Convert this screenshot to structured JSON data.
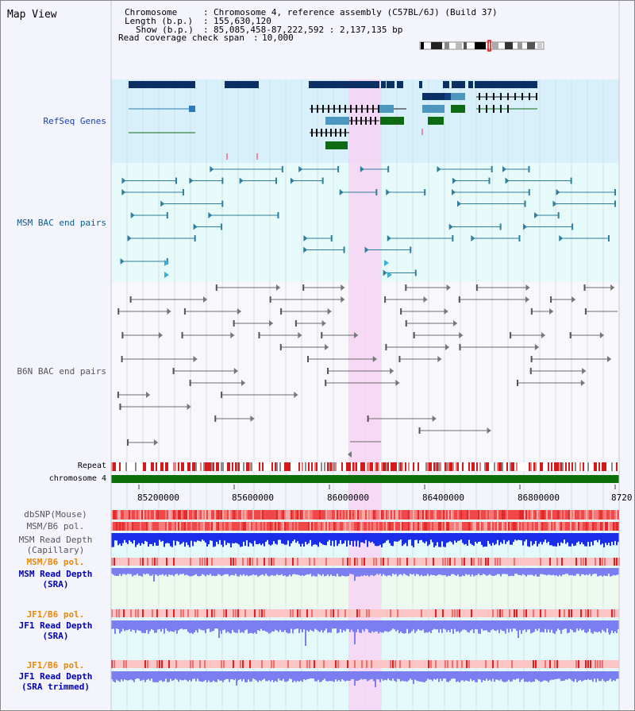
{
  "page": {
    "title": "Map View"
  },
  "header": {
    "chromosome_label": "Chromosome",
    "chromosome_value": "Chromosome 4, reference assembly (C57BL/6J) (Build 37)",
    "length_label": "Length (b.p.)",
    "length_value": "155,630,120",
    "show_label": "Show (b.p.)",
    "show_value": "85,085,458-87,222,592 : 2,137,135 bp",
    "coverage_label": "Read coverage check span",
    "coverage_value": "10,000"
  },
  "tracks": {
    "refseq": "RefSeq Genes",
    "msm_bac": "MSM BAC end pairs",
    "b6n_bac": "B6N BAC end pairs",
    "repeat": "Repeat",
    "chromosome": "chromosome 4",
    "dbsnp": "dbSNP(Mouse)",
    "msm_b6_pol_1": "MSM/B6 pol.",
    "msm_read_depth_cap_1": "MSM Read Depth",
    "msm_read_depth_cap_2": "(Capillary)",
    "msm_b6_pol_2": "MSM/B6 pol.",
    "msm_read_depth_sra_1": "MSM Read Depth",
    "msm_read_depth_sra_2": "(SRA)",
    "jf1_b6_pol_1": "JF1/B6 pol.",
    "jf1_read_depth_sra_1": "JF1 Read Depth",
    "jf1_read_depth_sra_2": "(SRA)",
    "jf1_b6_pol_2": "JF1/B6 pol.",
    "jf1_read_depth_trim_1": "JF1 Read Depth",
    "jf1_read_depth_trim_2": "(SRA trimmed)"
  },
  "axis": {
    "ticks": [
      "85200000",
      "85600000",
      "86000000",
      "86400000",
      "86800000",
      "8720"
    ]
  },
  "colors": {
    "refseq_bg": "#d8f0fb",
    "msm_bg": "#e6fafa",
    "highlight": "#f7d4f4",
    "dark_gene": "#0b2e63",
    "light_gene": "#4d97bf",
    "green_gene": "#0e6b14",
    "msm_line": "#2f7f9c",
    "b6n_line": "#6b6b6b",
    "chromosome_bar": "#0a6e0a",
    "depth_cap": "#1a2de8",
    "depth_sra": "#7a7ef0",
    "jf1_label": "#ee8800",
    "msm_sra_label": "#0000bb"
  }
}
